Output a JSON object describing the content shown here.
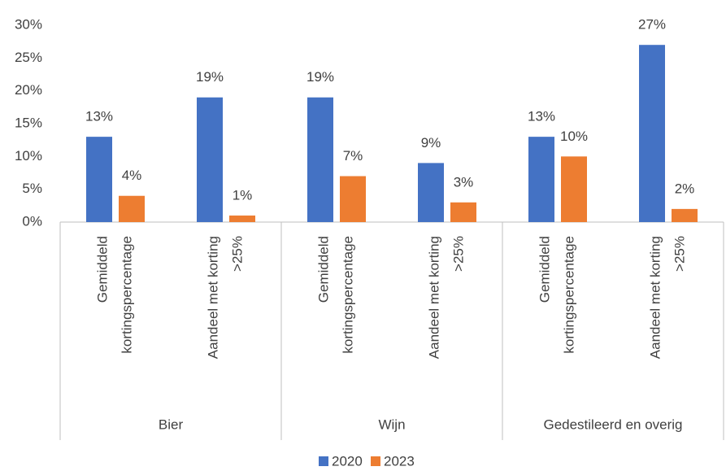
{
  "chart_data": {
    "type": "bar",
    "groups": [
      "Bier",
      "Wijn",
      "Gedestileerd en overig"
    ],
    "categories": [
      [
        "Gemiddeld",
        "kortingspercentage"
      ],
      [
        "Aandeel met korting",
        ">25%"
      ],
      [
        "Gemiddeld",
        "kortingspercentage"
      ],
      [
        "Aandeel met korting",
        ">25%"
      ],
      [
        "Gemiddeld",
        "kortingspercentage"
      ],
      [
        "Aandeel met korting",
        ">25%"
      ]
    ],
    "series": [
      {
        "name": "2020",
        "color": "#4472c4",
        "values": [
          13,
          19,
          19,
          9,
          13,
          27
        ],
        "value_labels": [
          "13%",
          "19%",
          "19%",
          "9%",
          "13%",
          "27%"
        ]
      },
      {
        "name": "2023",
        "color": "#ed7d31",
        "values": [
          4,
          1,
          7,
          3,
          10,
          2
        ],
        "value_labels": [
          "4%",
          "1%",
          "7%",
          "3%",
          "10%",
          "2%"
        ]
      }
    ],
    "ylim": [
      0,
      30
    ],
    "yticks": [
      {
        "value": 0,
        "label": "0%"
      },
      {
        "value": 5,
        "label": "5%"
      },
      {
        "value": 10,
        "label": "10%"
      },
      {
        "value": 15,
        "label": "15%"
      },
      {
        "value": 20,
        "label": "20%"
      },
      {
        "value": 25,
        "label": "25%"
      },
      {
        "value": 30,
        "label": "30%"
      }
    ],
    "grid": false,
    "legend": "bottom"
  }
}
